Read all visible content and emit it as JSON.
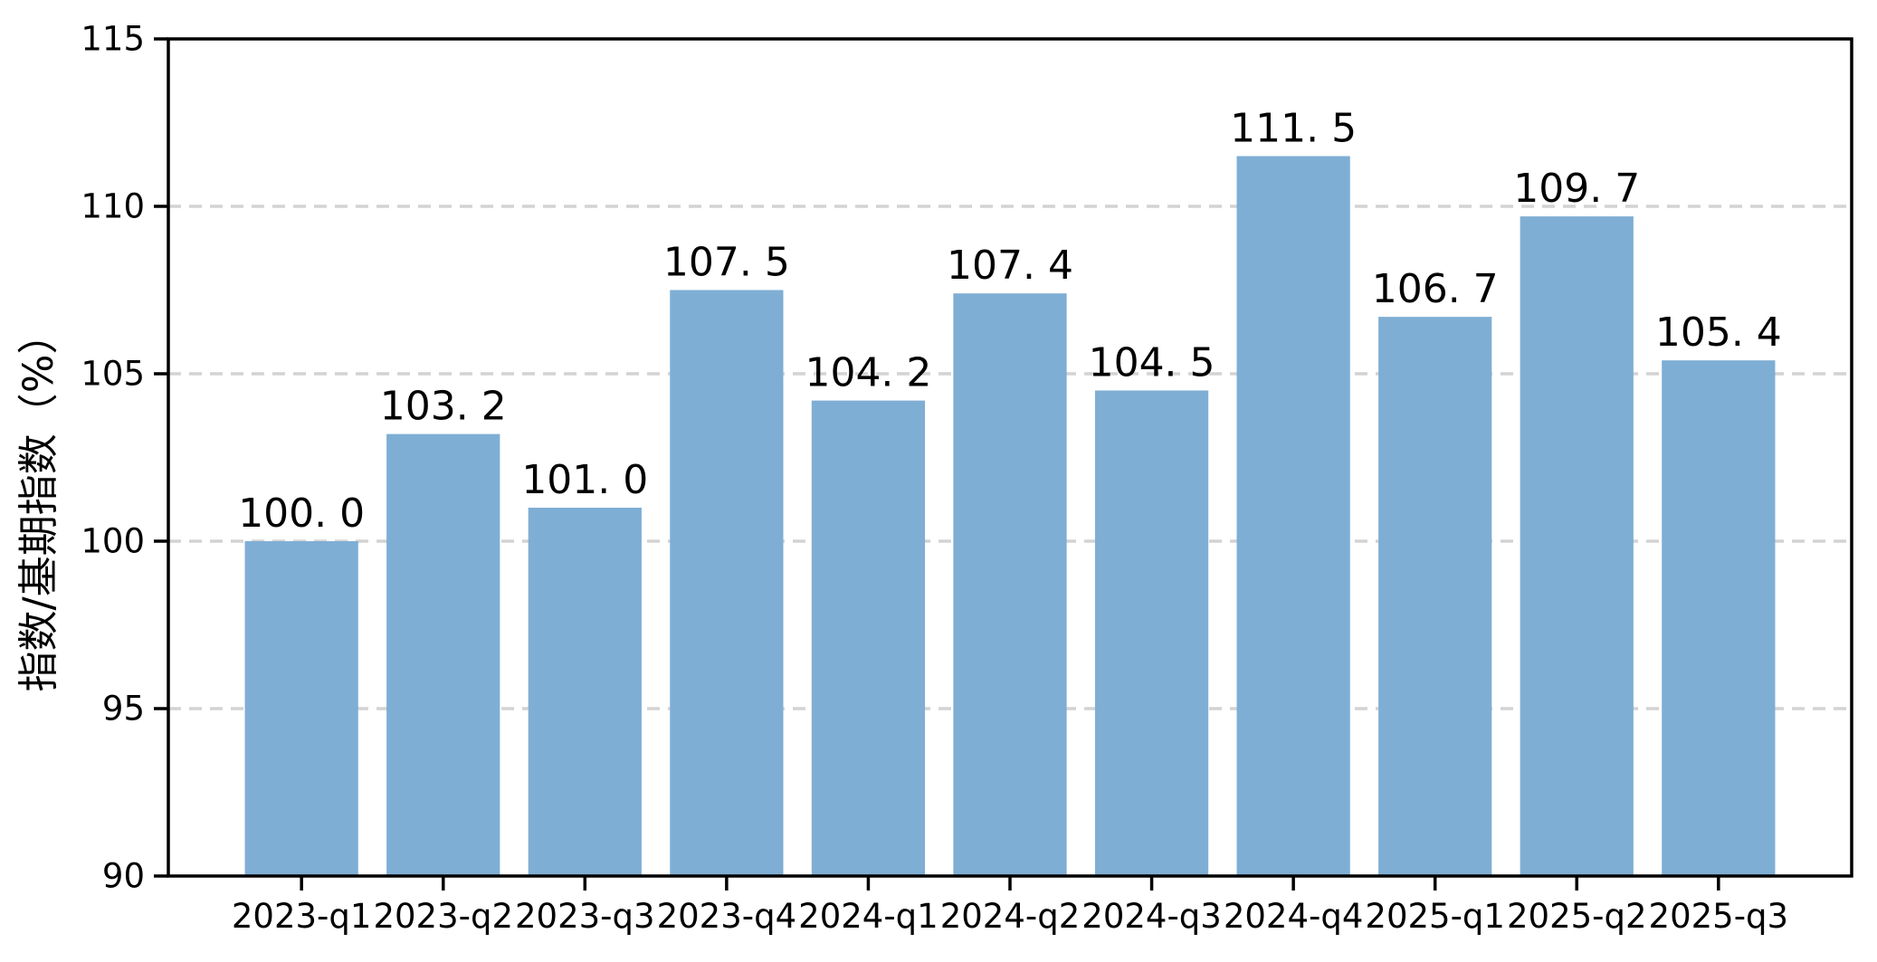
{
  "chart_data": {
    "type": "bar",
    "title": "",
    "xlabel": "",
    "ylabel": "指数/基期指数（%）",
    "categories": [
      "2023-q1",
      "2023-q2",
      "2023-q3",
      "2023-q4",
      "2024-q1",
      "2024-q2",
      "2024-q3",
      "2024-q4",
      "2025-q1",
      "2025-q2",
      "2025-q3"
    ],
    "values": [
      100.0,
      103.2,
      101.0,
      107.5,
      104.2,
      107.4,
      104.5,
      111.5,
      106.7,
      109.7,
      105.4
    ],
    "labels": [
      "100. 0",
      "103. 2",
      "101. 0",
      "107. 5",
      "104. 2",
      "107. 4",
      "104. 5",
      "111. 5",
      "106. 7",
      "109. 7",
      "105. 4"
    ],
    "ylim": [
      90,
      115
    ],
    "yticks": [
      90,
      95,
      100,
      105,
      110,
      115
    ],
    "grid": true,
    "legend": false,
    "colors": {
      "bar": "#7FAED4",
      "grid": "#d3d3d3",
      "axis": "#000000",
      "text": "#000000",
      "background": "#ffffff"
    }
  }
}
